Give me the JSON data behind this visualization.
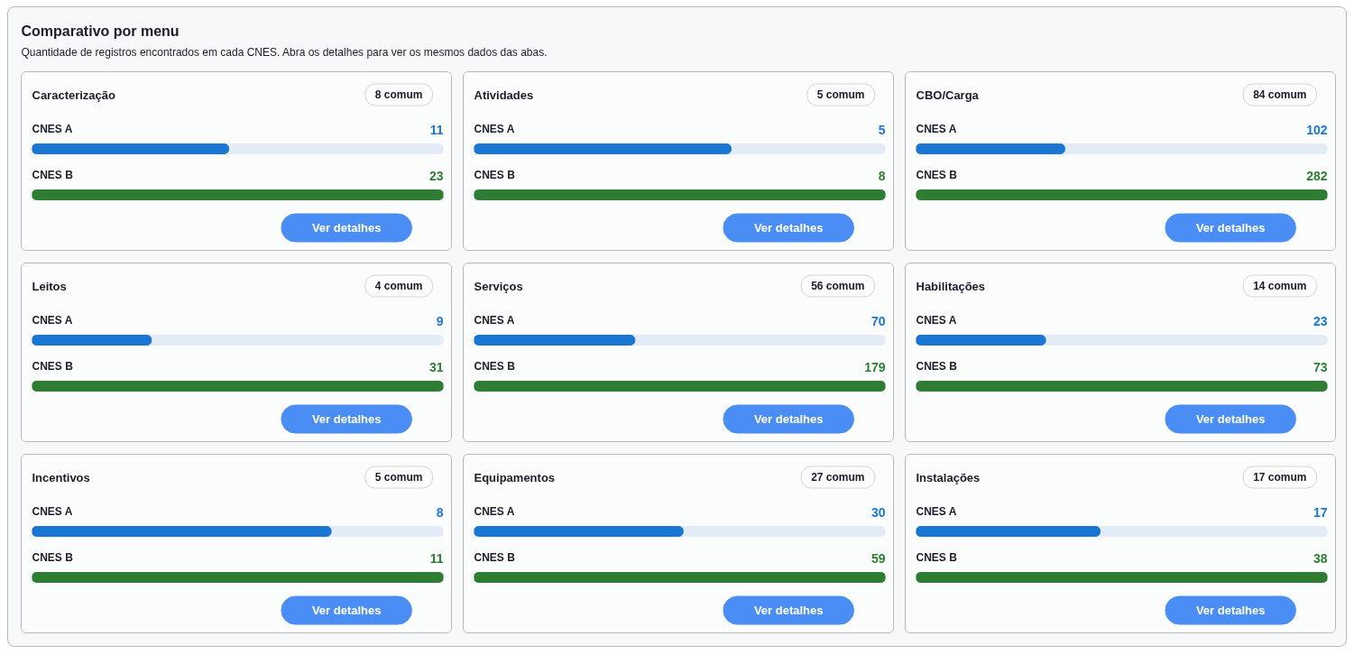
{
  "chart_data": [
    {
      "type": "other",
      "title": "Comparativo por menu",
      "subtitle": "Quantidade de registros encontrados em cada CNES. Abra os detalhes para ver os mesmos dados das abas."
    },
    {
      "type": "bar",
      "orientation": "horizontal",
      "title": "Caracterização",
      "categories": [
        "CNES A",
        "CNES B"
      ],
      "values": [
        11,
        23
      ],
      "colors": [
        "#1976d2",
        "#2e7d32"
      ],
      "data_labels": true,
      "annotations": [
        "8 comum",
        "Ver detalhes"
      ]
    },
    {
      "type": "bar",
      "orientation": "horizontal",
      "title": "Atividades",
      "categories": [
        "CNES A",
        "CNES B"
      ],
      "values": [
        5,
        8
      ],
      "colors": [
        "#1976d2",
        "#2e7d32"
      ],
      "data_labels": true,
      "annotations": [
        "5 comum",
        "Ver detalhes"
      ]
    },
    {
      "type": "bar",
      "orientation": "horizontal",
      "title": "CBO/Carga",
      "categories": [
        "CNES A",
        "CNES B"
      ],
      "values": [
        102,
        282
      ],
      "colors": [
        "#1976d2",
        "#2e7d32"
      ],
      "data_labels": true,
      "annotations": [
        "84 comum",
        "Ver detalhes"
      ]
    },
    {
      "type": "bar",
      "orientation": "horizontal",
      "title": "Leitos",
      "categories": [
        "CNES A",
        "CNES B"
      ],
      "values": [
        9,
        31
      ],
      "colors": [
        "#1976d2",
        "#2e7d32"
      ],
      "data_labels": true,
      "annotations": [
        "4 comum",
        "Ver detalhes"
      ]
    },
    {
      "type": "bar",
      "orientation": "horizontal",
      "title": "Serviços",
      "categories": [
        "CNES A",
        "CNES B"
      ],
      "values": [
        70,
        179
      ],
      "colors": [
        "#1976d2",
        "#2e7d32"
      ],
      "data_labels": true,
      "annotations": [
        "56 comum",
        "Ver detalhes"
      ]
    },
    {
      "type": "bar",
      "orientation": "horizontal",
      "title": "Habilitações",
      "categories": [
        "CNES A",
        "CNES B"
      ],
      "values": [
        23,
        73
      ],
      "colors": [
        "#1976d2",
        "#2e7d32"
      ],
      "data_labels": true,
      "annotations": [
        "14 comum",
        "Ver detalhes"
      ]
    },
    {
      "type": "bar",
      "orientation": "horizontal",
      "title": "Incentivos",
      "categories": [
        "CNES A",
        "CNES B"
      ],
      "values": [
        8,
        11
      ],
      "colors": [
        "#1976d2",
        "#2e7d32"
      ],
      "data_labels": true,
      "annotations": [
        "5 comum",
        "Ver detalhes"
      ]
    },
    {
      "type": "bar",
      "orientation": "horizontal",
      "title": "Equipamentos",
      "categories": [
        "CNES A",
        "CNES B"
      ],
      "values": [
        30,
        59
      ],
      "colors": [
        "#1976d2",
        "#2e7d32"
      ],
      "data_labels": true,
      "annotations": [
        "27 comum",
        "Ver detalhes"
      ]
    },
    {
      "type": "bar",
      "orientation": "horizontal",
      "title": "Instalações",
      "categories": [
        "CNES A",
        "CNES B"
      ],
      "values": [
        17,
        38
      ],
      "colors": [
        "#1976d2",
        "#2e7d32"
      ],
      "data_labels": true,
      "annotations": [
        "17 comum",
        "Ver detalhes"
      ]
    }
  ]
}
